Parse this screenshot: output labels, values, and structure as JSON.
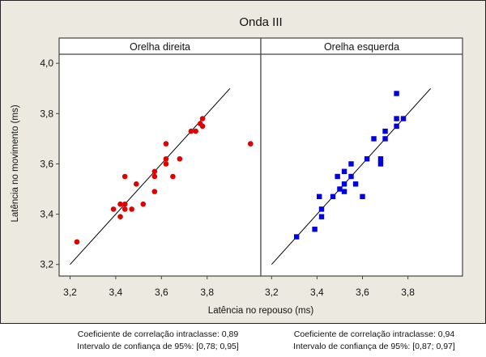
{
  "chart_data": {
    "type": "scatter",
    "title": "Onda III",
    "xlabel": "Latência no repouso (ms)",
    "ylabel": "Latência no movimento (ms)",
    "xlim": [
      3.2,
      4.0
    ],
    "ylim": [
      3.2,
      4.0
    ],
    "x_ticks": [
      "3,2",
      "3,4",
      "3,6",
      "3,8"
    ],
    "x_tick_values": [
      3.2,
      3.4,
      3.6,
      3.8
    ],
    "y_ticks": [
      "3,2",
      "3,4",
      "3,6",
      "3,8",
      "4,0"
    ],
    "y_tick_values": [
      3.2,
      3.4,
      3.6,
      3.8,
      4.0
    ],
    "grid": false,
    "reference_line": {
      "type": "identity",
      "from": 3.2,
      "to": 3.9
    },
    "panels": [
      {
        "name": "Orelha direita",
        "color": "#e00000",
        "marker": "circle",
        "points": [
          [
            3.23,
            3.29
          ],
          [
            3.39,
            3.42
          ],
          [
            3.42,
            3.44
          ],
          [
            3.42,
            3.39
          ],
          [
            3.44,
            3.44
          ],
          [
            3.44,
            3.42
          ],
          [
            3.47,
            3.42
          ],
          [
            3.44,
            3.55
          ],
          [
            3.49,
            3.52
          ],
          [
            3.52,
            3.44
          ],
          [
            3.57,
            3.49
          ],
          [
            3.57,
            3.55
          ],
          [
            3.57,
            3.57
          ],
          [
            3.62,
            3.68
          ],
          [
            3.62,
            3.62
          ],
          [
            3.62,
            3.6
          ],
          [
            3.65,
            3.55
          ],
          [
            3.68,
            3.62
          ],
          [
            3.73,
            3.73
          ],
          [
            3.75,
            3.73
          ],
          [
            3.77,
            3.76
          ],
          [
            3.78,
            3.78
          ],
          [
            3.78,
            3.75
          ],
          [
            3.99,
            3.68
          ]
        ],
        "footer": [
          "Coeficiente de correlação intraclasse: 0,89",
          "Intervalo de confiança de 95%: [0,78; 0,95]"
        ]
      },
      {
        "name": "Orelha esquerda",
        "color": "#0000e0",
        "marker": "square",
        "points": [
          [
            3.31,
            3.31
          ],
          [
            3.39,
            3.34
          ],
          [
            3.42,
            3.39
          ],
          [
            3.42,
            3.42
          ],
          [
            3.41,
            3.47
          ],
          [
            3.47,
            3.47
          ],
          [
            3.5,
            3.5
          ],
          [
            3.52,
            3.49
          ],
          [
            3.52,
            3.52
          ],
          [
            3.49,
            3.55
          ],
          [
            3.52,
            3.57
          ],
          [
            3.55,
            3.55
          ],
          [
            3.55,
            3.6
          ],
          [
            3.57,
            3.52
          ],
          [
            3.6,
            3.47
          ],
          [
            3.62,
            3.62
          ],
          [
            3.65,
            3.7
          ],
          [
            3.68,
            3.62
          ],
          [
            3.68,
            3.6
          ],
          [
            3.7,
            3.7
          ],
          [
            3.7,
            3.73
          ],
          [
            3.75,
            3.75
          ],
          [
            3.75,
            3.78
          ],
          [
            3.78,
            3.78
          ],
          [
            3.75,
            3.88
          ]
        ],
        "footer": [
          "Coeficiente de correlação intraclasse: 0,94",
          "Intervalo de confiança de 95%: [0,87; 0,97]"
        ]
      }
    ]
  }
}
